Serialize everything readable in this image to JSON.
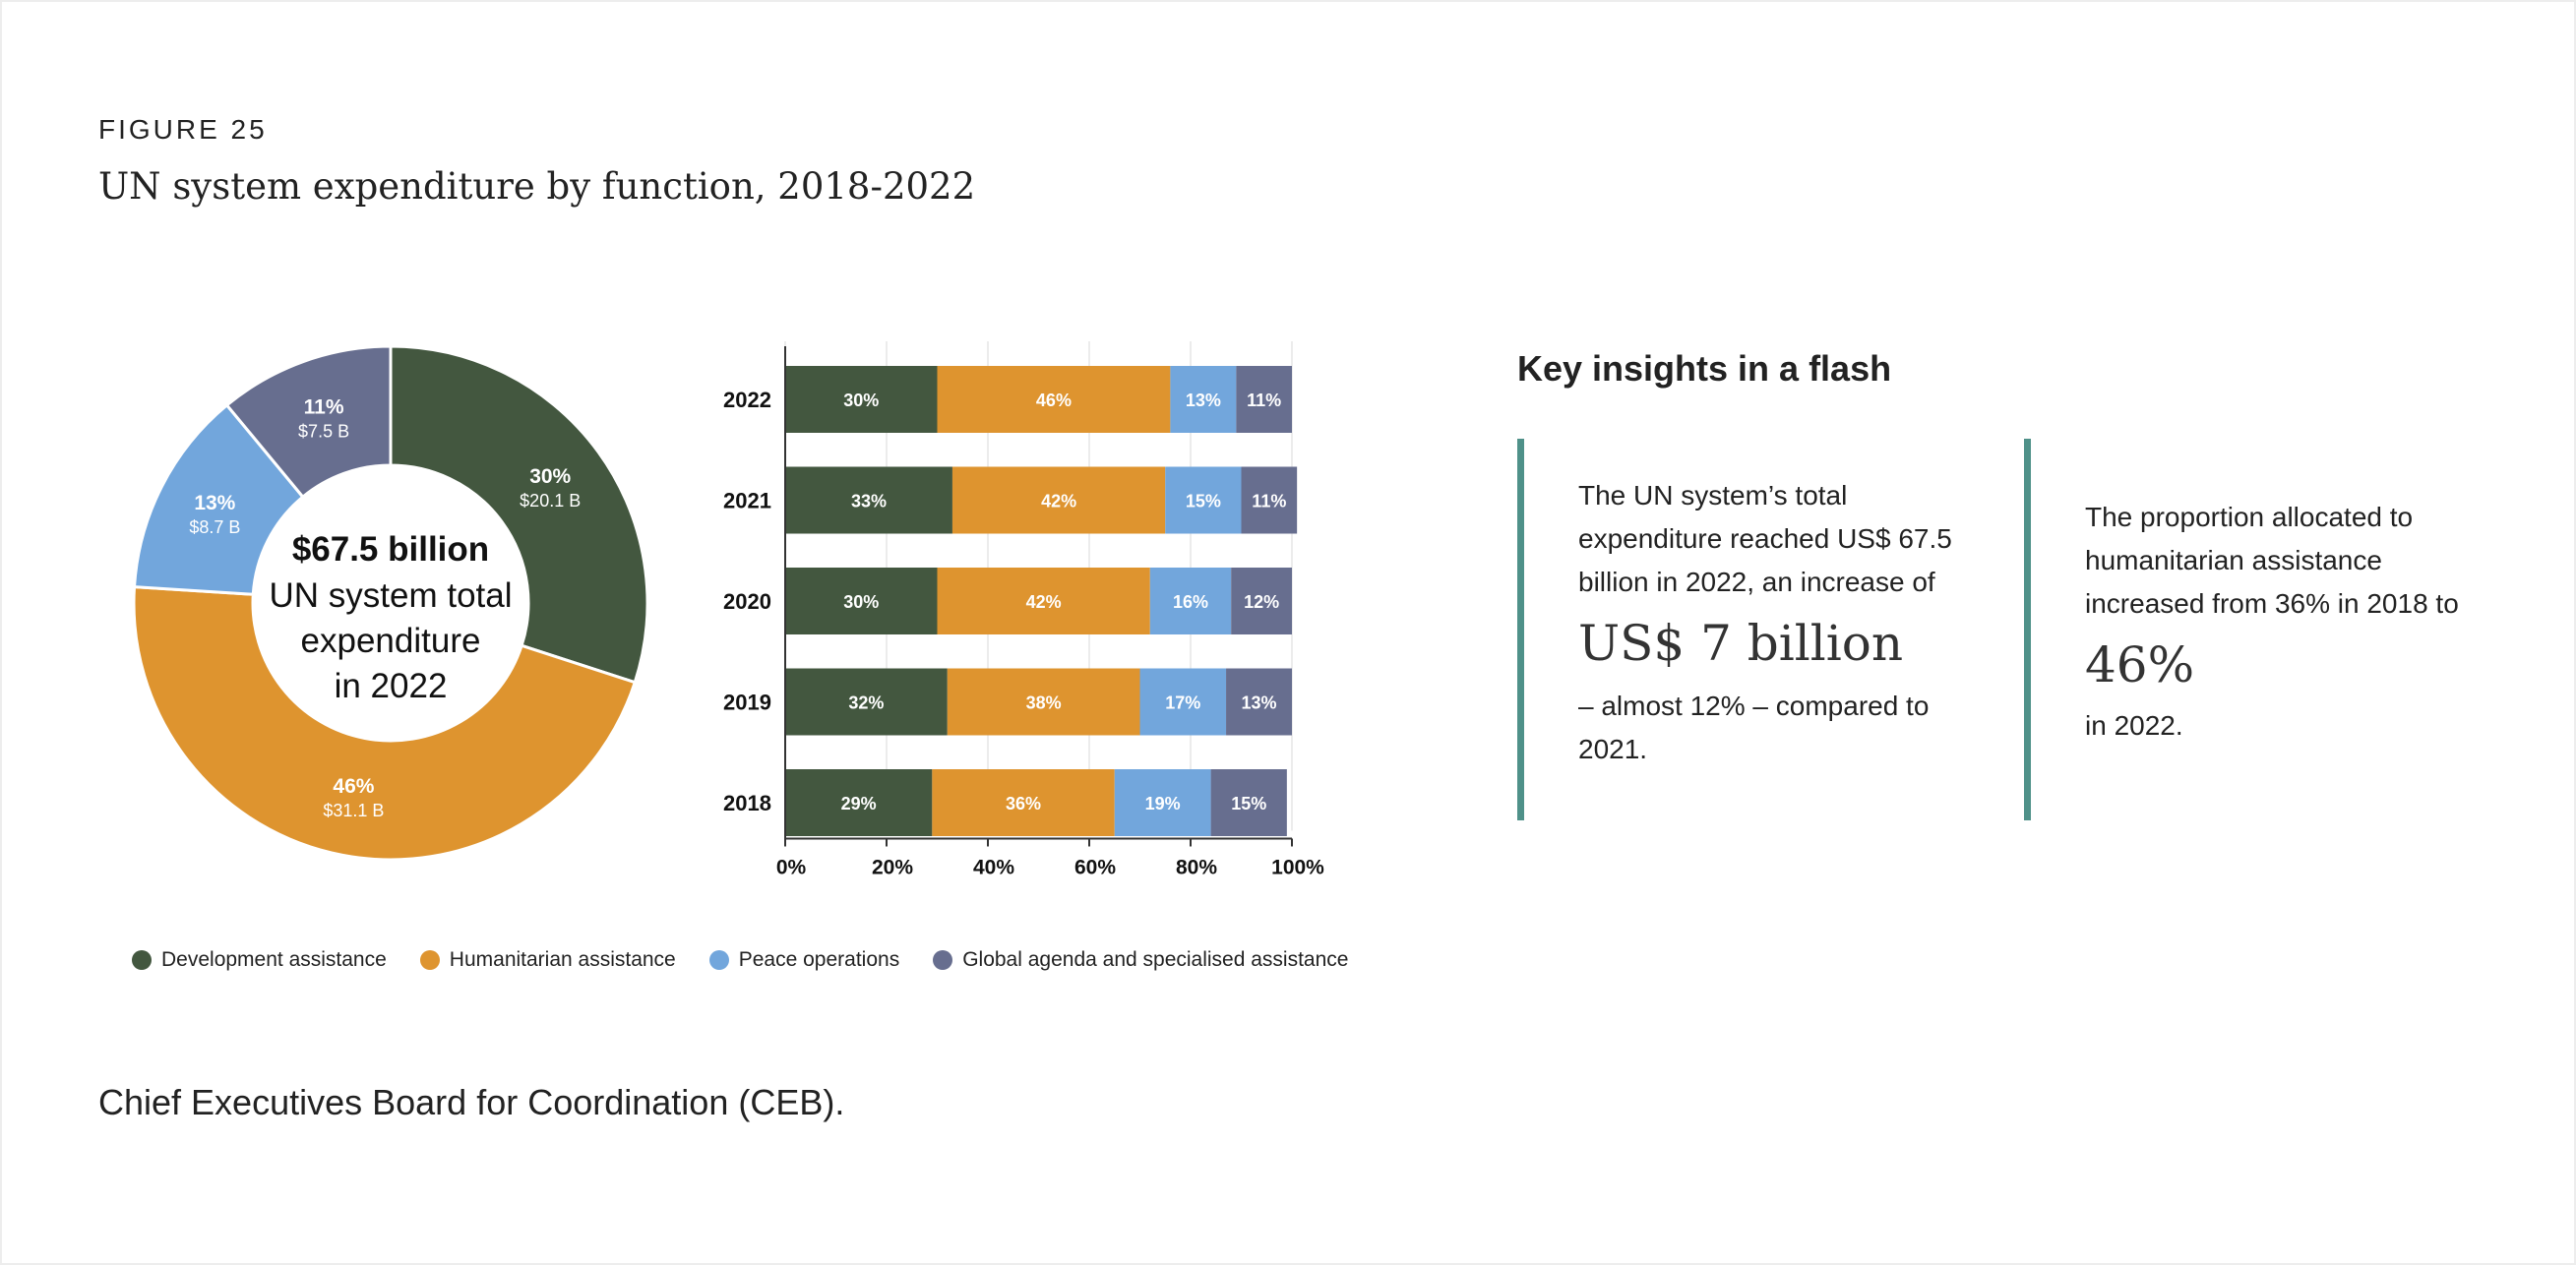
{
  "figure": {
    "label": "FIGURE 25",
    "title": "UN system expenditure by function, 2018-2022"
  },
  "colors": {
    "development": "#43573f",
    "humanitarian": "#de942f",
    "peace": "#72a6dc",
    "global": "#676e8f",
    "accent": "#4f9189"
  },
  "chart_data": [
    {
      "type": "pie",
      "variant": "donut",
      "title": "",
      "center_label": {
        "line1": "$67.5 billion",
        "line2": "UN system total",
        "line3": "expenditure",
        "line4": "in 2022"
      },
      "slices": [
        {
          "name": "Development assistance",
          "percent": 30,
          "value_label": "$20.1 B",
          "color": "#43573f"
        },
        {
          "name": "Humanitarian assistance",
          "percent": 46,
          "value_label": "$31.1 B",
          "color": "#de942f"
        },
        {
          "name": "Peace operations",
          "percent": 13,
          "value_label": "$8.7 B",
          "color": "#72a6dc"
        },
        {
          "name": "Global agenda and specialised assistance",
          "percent": 11,
          "value_label": "$7.5 B",
          "color": "#676e8f"
        }
      ]
    },
    {
      "type": "bar",
      "orientation": "horizontal",
      "stacked": true,
      "categories": [
        "2022",
        "2021",
        "2020",
        "2019",
        "2018"
      ],
      "series": [
        {
          "name": "Development assistance",
          "values": [
            30,
            33,
            30,
            32,
            29
          ],
          "color": "#43573f"
        },
        {
          "name": "Humanitarian assistance",
          "values": [
            46,
            42,
            42,
            38,
            36
          ],
          "color": "#de942f"
        },
        {
          "name": "Peace operations",
          "values": [
            13,
            15,
            16,
            17,
            19
          ],
          "color": "#72a6dc"
        },
        {
          "name": "Global agenda and specialised assistance",
          "values": [
            11,
            11,
            12,
            13,
            15
          ],
          "color": "#676e8f"
        }
      ],
      "xlim": [
        0,
        100
      ],
      "xticks": [
        "0%",
        "20%",
        "40%",
        "60%",
        "80%",
        "100%"
      ],
      "grid": true
    }
  ],
  "legend": [
    {
      "label": "Development assistance",
      "color": "#43573f"
    },
    {
      "label": "Humanitarian assistance",
      "color": "#de942f"
    },
    {
      "label": "Peace operations",
      "color": "#72a6dc"
    },
    {
      "label": "Global agenda and specialised assistance",
      "color": "#676e8f"
    }
  ],
  "source": "Chief Executives Board for Coordination (CEB).",
  "insights": {
    "title": "Key insights in a flash",
    "cards": [
      {
        "text_before": "The UN system’s total expenditure reached US$ 67.5 billion in 2022, an increase of",
        "highlight": "US$ 7 billion",
        "text_after": "– almost 12% – compared to 2021."
      },
      {
        "text_before": "The proportion allocated to humanitarian assistance increased from 36% in 2018 to",
        "highlight": "46%",
        "text_after": "in 2022."
      }
    ]
  }
}
